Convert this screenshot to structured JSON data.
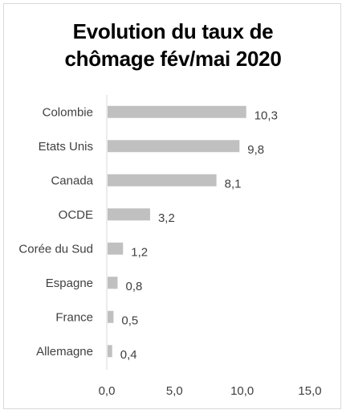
{
  "chart_data": {
    "type": "bar",
    "orientation": "horizontal",
    "title": "Evolution du taux de chômage fév/mai 2020",
    "title_lines": [
      "Evolution du taux de",
      "chômage fév/mai 2020"
    ],
    "categories": [
      "Colombie",
      "Etats Unis",
      "Canada",
      "OCDE",
      "Corée du Sud",
      "Espagne",
      "France",
      "Allemagne"
    ],
    "values": [
      10.3,
      9.8,
      8.1,
      3.2,
      1.2,
      0.8,
      0.5,
      0.4
    ],
    "value_labels": [
      "10,3",
      "9,8",
      "8,1",
      "3,2",
      "1,2",
      "0,8",
      "0,5",
      "0,4"
    ],
    "xlim": [
      0,
      15
    ],
    "xticks": [
      0,
      5,
      10,
      15
    ],
    "xtick_labels": [
      "0,0",
      "5,0",
      "10,0",
      "15,0"
    ],
    "xlabel": "",
    "ylabel": "",
    "grid": false,
    "legend": "none",
    "bar_color": "#c0c0c0"
  }
}
